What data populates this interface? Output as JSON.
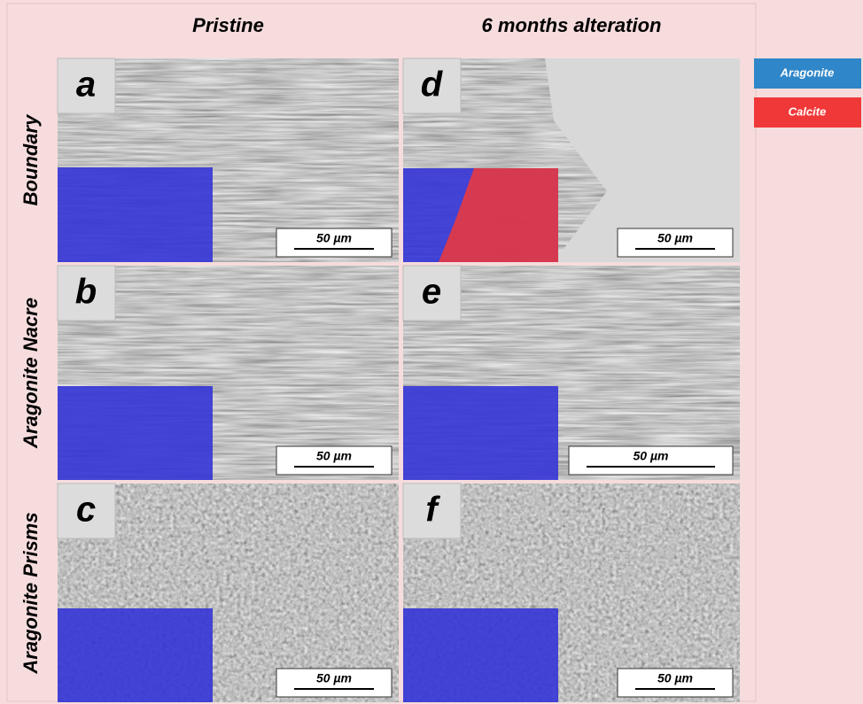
{
  "columns": [
    "Pristine",
    "6 months alteration"
  ],
  "rows": [
    "Boundary",
    "Aragonite Nacre",
    "Aragonite Prisms"
  ],
  "panels": [
    {
      "label": "a",
      "scale": "50 µm"
    },
    {
      "label": "b",
      "scale": "50 µm"
    },
    {
      "label": "c",
      "scale": "50 µm"
    },
    {
      "label": "d",
      "scale": "50 µm"
    },
    {
      "label": "e",
      "scale": "50 µm"
    },
    {
      "label": "f",
      "scale": "50 µm"
    }
  ],
  "legend": [
    {
      "label": "Aragonite",
      "color": "#2f86c8"
    },
    {
      "label": "Calcite",
      "color": "#f03838"
    }
  ]
}
